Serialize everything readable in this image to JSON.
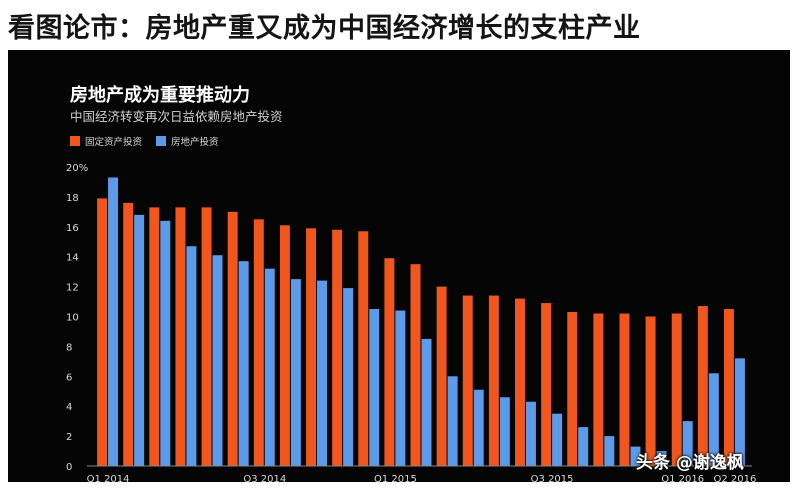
{
  "headline": "看图论市：房地产重又成为中国经济增长的支柱产业",
  "watermark": "头条 @谢逸枫",
  "colors": {
    "fixed_asset": "#f0561e",
    "real_estate": "#5b9bea",
    "background": "#050505"
  },
  "chart_data": {
    "type": "bar",
    "title": "房地产成为重要推动力",
    "subtitle": "中国经济转变再次日益依赖房地产投资",
    "x": [
      "2014-03",
      "2014-04",
      "2014-05",
      "2014-06",
      "2014-07",
      "2014-08",
      "2014-09",
      "2014-10",
      "2014-11",
      "2014-12",
      "2015-02",
      "2015-03",
      "2015-04",
      "2015-05",
      "2015-06",
      "2015-07",
      "2015-08",
      "2015-09",
      "2015-10",
      "2015-11",
      "2015-12",
      "2016-02",
      "2016-03",
      "2016-04",
      "2016-05"
    ],
    "x_tick_labels": [
      {
        "label": "Q1 2014",
        "at": "2014-03"
      },
      {
        "label": "Q3 2014",
        "at": "2014-09"
      },
      {
        "label": "Q1 2015",
        "at": "2015-03"
      },
      {
        "label": "Q3 2015",
        "at": "2015-09"
      },
      {
        "label": "Q1 2016",
        "at": "2016-03"
      },
      {
        "label": "Q2 2016",
        "at": "2016-05"
      }
    ],
    "series": [
      {
        "name": "固定资产投资",
        "color": "#f0561e",
        "values": [
          17.9,
          17.6,
          17.3,
          17.3,
          17.3,
          17.0,
          16.5,
          16.1,
          15.9,
          15.8,
          15.7,
          13.9,
          13.5,
          12.0,
          11.4,
          11.4,
          11.2,
          10.9,
          10.3,
          10.2,
          10.2,
          10.0,
          10.2,
          10.7,
          10.5
        ]
      },
      {
        "name": "房地产投资",
        "color": "#5b9bea",
        "values": [
          19.3,
          16.8,
          16.4,
          14.7,
          14.1,
          13.7,
          13.2,
          12.5,
          12.4,
          11.9,
          10.5,
          10.4,
          8.5,
          6.0,
          5.1,
          4.6,
          4.3,
          3.5,
          2.6,
          2.0,
          1.3,
          1.0,
          3.0,
          6.2,
          7.2
        ]
      }
    ],
    "y_ticks": [
      "20%",
      "18",
      "16",
      "14",
      "12",
      "10",
      "8",
      "6",
      "4",
      "2",
      "0"
    ],
    "ylim": [
      0,
      20
    ],
    "grid": false,
    "legend_position": "top-left"
  }
}
